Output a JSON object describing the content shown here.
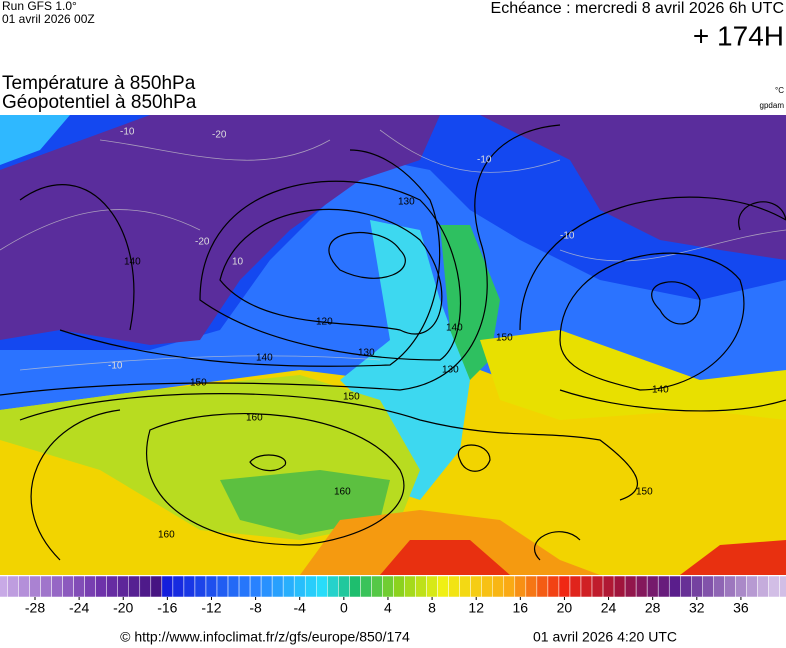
{
  "header": {
    "run": "Run GFS 1.0°",
    "run_date": "01 avril 2026 00Z",
    "valid": "Echéance : mercredi 8 avril 2026 6h UTC",
    "lead": "+ 174H"
  },
  "titles": [
    "Température à 850hPa",
    "Géopotentiel à 850hPa"
  ],
  "units": [
    "°C",
    "gpdam"
  ],
  "contour_labels": [
    "-10",
    "-20",
    "-20",
    "-10",
    "10",
    "-10",
    "-10",
    "130",
    "140",
    "120",
    "130",
    "140",
    "150",
    "150",
    "140",
    "150",
    "160",
    "160",
    "160",
    "150",
    "140",
    "130"
  ],
  "colorbar": {
    "ticks": [
      -28,
      -24,
      -20,
      -16,
      -12,
      -8,
      -4,
      0,
      4,
      8,
      12,
      16,
      20,
      24,
      28,
      32,
      36
    ]
  },
  "footer": {
    "url": "© http://www.infoclimat.fr/z/gfs/europe/850/174",
    "time": "01 avril 2026  4:20 UTC"
  }
}
